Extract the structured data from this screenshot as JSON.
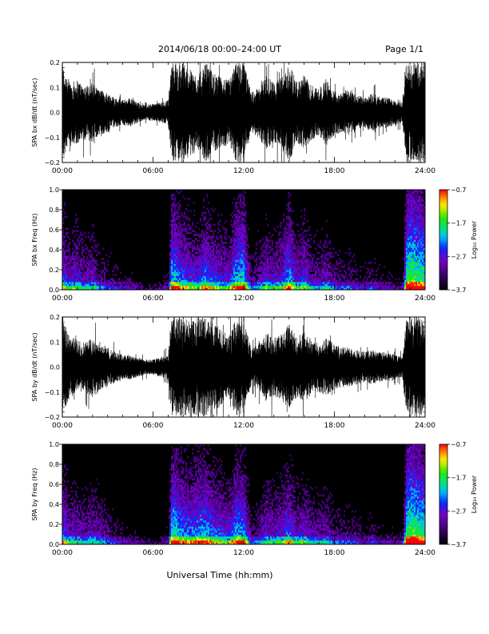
{
  "header": {
    "title": "2014/06/18   00:00–24:00 UT",
    "page": "Page 1/1"
  },
  "footer": {
    "xlabel": "Universal Time (hh:mm)"
  },
  "chart_data": [
    {
      "type": "line",
      "id": "bx-waveform",
      "ylabel": "SPA bx dB/dt (nT/sec)",
      "xlim": [
        0,
        24
      ],
      "ylim": [
        -0.2,
        0.2
      ],
      "xticks": [
        "00:00",
        "06:00",
        "12:00",
        "18:00",
        "24:00"
      ],
      "yticks": [
        "−0.2",
        "−0.1",
        "0.0",
        "0.1",
        "0.2"
      ],
      "envelope": {
        "x": [
          0,
          0.5,
          1,
          1.5,
          2,
          2.5,
          3,
          3.5,
          4,
          4.5,
          5,
          5.5,
          6,
          6.5,
          7,
          7.25,
          7.5,
          8,
          8.5,
          9,
          9.5,
          10,
          10.5,
          11,
          11.5,
          12,
          12.5,
          13,
          13.5,
          14,
          14.5,
          15,
          15.5,
          16,
          16.5,
          17,
          17.5,
          18,
          18.5,
          19,
          19.5,
          20,
          20.5,
          21,
          21.5,
          22,
          22.5,
          22.75,
          23,
          23.5,
          24
        ],
        "amp": [
          0.2,
          0.12,
          0.13,
          0.11,
          0.12,
          0.09,
          0.08,
          0.06,
          0.05,
          0.06,
          0.04,
          0.03,
          0.035,
          0.04,
          0.05,
          0.2,
          0.2,
          0.2,
          0.17,
          0.15,
          0.2,
          0.16,
          0.14,
          0.13,
          0.2,
          0.2,
          0.08,
          0.1,
          0.15,
          0.12,
          0.14,
          0.2,
          0.12,
          0.15,
          0.11,
          0.1,
          0.13,
          0.09,
          0.08,
          0.09,
          0.07,
          0.06,
          0.08,
          0.06,
          0.06,
          0.05,
          0.04,
          0.2,
          0.2,
          0.2,
          0.2
        ]
      }
    },
    {
      "type": "heatmap",
      "id": "bx-spectrogram",
      "ylabel": "SPA bx Freq (Hz)",
      "colorbar_label": "Log₁₀ Power",
      "xlim": [
        0,
        24
      ],
      "ylim": [
        0,
        1
      ],
      "clim": [
        -3.7,
        -0.7
      ],
      "xticks": [
        "00:00",
        "06:00",
        "12:00",
        "18:00",
        "24:00"
      ],
      "yticks": [
        "0.0",
        "0.2",
        "0.4",
        "0.6",
        "0.8",
        "1.0"
      ],
      "cticks": [
        "−0.7",
        "−1.7",
        "−2.7",
        "−3.7"
      ],
      "activity": {
        "x": [
          0,
          0.5,
          1,
          1.5,
          2,
          2.5,
          3,
          3.5,
          4,
          4.5,
          5,
          5.5,
          6,
          6.5,
          7,
          7.25,
          7.5,
          8,
          8.5,
          9,
          9.5,
          10,
          10.5,
          11,
          11.5,
          12,
          12.5,
          13,
          13.5,
          14,
          14.5,
          15,
          15.5,
          16,
          16.5,
          17,
          17.5,
          18,
          18.5,
          19,
          19.5,
          20,
          20.5,
          21,
          21.5,
          22,
          22.5,
          22.75,
          23,
          23.5,
          24
        ],
        "level": [
          0.7,
          0.55,
          0.6,
          0.5,
          0.55,
          0.45,
          0.4,
          0.35,
          0.3,
          0.32,
          0.25,
          0.2,
          0.22,
          0.25,
          0.3,
          0.85,
          0.8,
          0.7,
          0.65,
          0.62,
          0.75,
          0.65,
          0.6,
          0.58,
          0.8,
          0.85,
          0.4,
          0.5,
          0.6,
          0.55,
          0.6,
          0.8,
          0.55,
          0.65,
          0.5,
          0.48,
          0.55,
          0.42,
          0.4,
          0.42,
          0.36,
          0.32,
          0.38,
          0.3,
          0.3,
          0.28,
          0.25,
          0.9,
          1,
          0.95,
          0.9
        ]
      }
    },
    {
      "type": "line",
      "id": "by-waveform",
      "ylabel": "SPA by dB/dt (nT/sec)",
      "xlim": [
        0,
        24
      ],
      "ylim": [
        -0.2,
        0.2
      ],
      "xticks": [
        "00:00",
        "06:00",
        "12:00",
        "18:00",
        "24:00"
      ],
      "yticks": [
        "−0.2",
        "−0.1",
        "0.0",
        "0.1",
        "0.2"
      ],
      "envelope": {
        "x": [
          0,
          0.5,
          1,
          1.5,
          2,
          2.5,
          3,
          3.5,
          4,
          4.5,
          5,
          5.5,
          6,
          6.5,
          7,
          7.25,
          7.5,
          8,
          8.5,
          9,
          9.5,
          10,
          10.5,
          11,
          11.5,
          12,
          12.5,
          13,
          13.5,
          14,
          14.5,
          15,
          15.5,
          16,
          16.5,
          17,
          17.5,
          18,
          18.5,
          19,
          19.5,
          20,
          20.5,
          21,
          21.5,
          22,
          22.5,
          22.75,
          23,
          23.5,
          24
        ],
        "amp": [
          0.2,
          0.12,
          0.11,
          0.1,
          0.12,
          0.1,
          0.08,
          0.06,
          0.05,
          0.05,
          0.04,
          0.03,
          0.03,
          0.04,
          0.05,
          0.2,
          0.2,
          0.2,
          0.18,
          0.2,
          0.2,
          0.17,
          0.16,
          0.12,
          0.2,
          0.18,
          0.08,
          0.09,
          0.14,
          0.12,
          0.13,
          0.18,
          0.12,
          0.14,
          0.11,
          0.1,
          0.12,
          0.09,
          0.08,
          0.08,
          0.07,
          0.06,
          0.07,
          0.06,
          0.06,
          0.05,
          0.04,
          0.2,
          0.2,
          0.2,
          0.2
        ]
      }
    },
    {
      "type": "heatmap",
      "id": "by-spectrogram",
      "ylabel": "SPA by Freq (Hz)",
      "colorbar_label": "Log₁₀ Power",
      "xlim": [
        0,
        24
      ],
      "ylim": [
        0,
        1
      ],
      "clim": [
        -3.7,
        -0.7
      ],
      "xticks": [
        "00:00",
        "06:00",
        "12:00",
        "18:00",
        "24:00"
      ],
      "yticks": [
        "0.0",
        "0.2",
        "0.4",
        "0.6",
        "0.8",
        "1.0"
      ],
      "cticks": [
        "−0.7",
        "−1.7",
        "−2.7",
        "−3.7"
      ],
      "activity": {
        "x": [
          0,
          0.5,
          1,
          1.5,
          2,
          2.5,
          3,
          3.5,
          4,
          4.5,
          5,
          5.5,
          6,
          6.5,
          7,
          7.25,
          7.5,
          8,
          8.5,
          9,
          9.5,
          10,
          10.5,
          11,
          11.5,
          12,
          12.5,
          13,
          13.5,
          14,
          14.5,
          15,
          15.5,
          16,
          16.5,
          17,
          17.5,
          18,
          18.5,
          19,
          19.5,
          20,
          20.5,
          21,
          21.5,
          22,
          22.5,
          22.75,
          23,
          23.5,
          24
        ],
        "level": [
          0.7,
          0.55,
          0.55,
          0.5,
          0.55,
          0.5,
          0.42,
          0.36,
          0.3,
          0.3,
          0.25,
          0.2,
          0.2,
          0.25,
          0.3,
          0.88,
          0.85,
          0.75,
          0.72,
          0.78,
          0.8,
          0.7,
          0.66,
          0.6,
          0.8,
          0.78,
          0.4,
          0.45,
          0.58,
          0.55,
          0.58,
          0.72,
          0.55,
          0.6,
          0.5,
          0.48,
          0.52,
          0.42,
          0.4,
          0.4,
          0.36,
          0.32,
          0.36,
          0.3,
          0.3,
          0.28,
          0.25,
          0.9,
          1,
          0.95,
          0.9
        ]
      }
    }
  ]
}
